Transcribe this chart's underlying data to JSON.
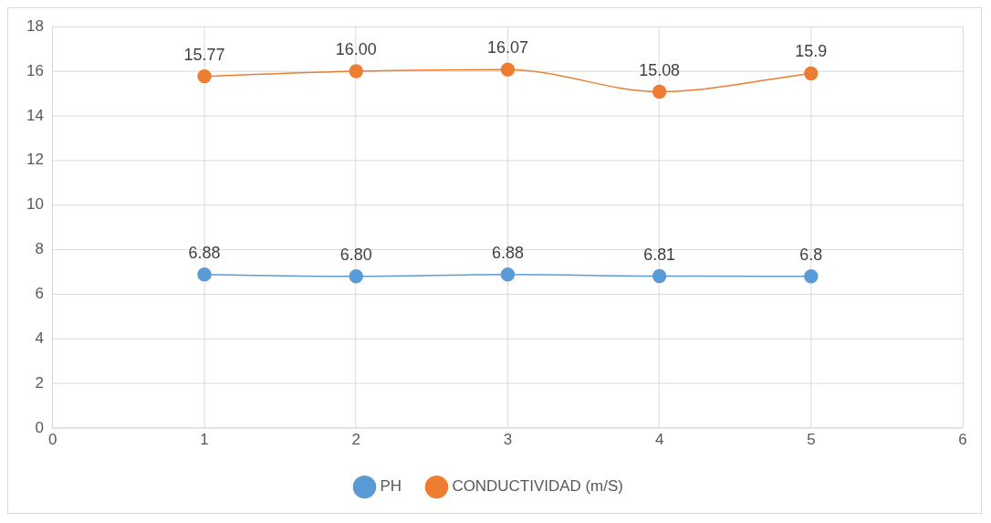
{
  "chart_data": {
    "type": "line",
    "x": [
      1,
      2,
      3,
      4,
      5
    ],
    "xlim": [
      0,
      6
    ],
    "xticks": [
      0,
      1,
      2,
      3,
      4,
      5,
      6
    ],
    "ylim": [
      0,
      18
    ],
    "yticks": [
      0,
      2,
      4,
      6,
      8,
      10,
      12,
      14,
      16,
      18
    ],
    "grid": true,
    "legend": "bottom",
    "marker": "circle",
    "line_style": "solid",
    "series": [
      {
        "name": "PH",
        "color": "#5b9bd5",
        "values": [
          6.88,
          6.8,
          6.88,
          6.81,
          6.8
        ],
        "value_labels": [
          "6.88",
          "6.80",
          "6.88",
          "6.81",
          "6.8"
        ]
      },
      {
        "name": "CONDUCTIVIDAD (m/S)",
        "color": "#ed7d31",
        "values": [
          15.77,
          16,
          16.07,
          15.08,
          15.9
        ],
        "value_labels": [
          "15.77",
          "16.00",
          "16.07",
          "15.08",
          "15.9"
        ]
      }
    ]
  }
}
